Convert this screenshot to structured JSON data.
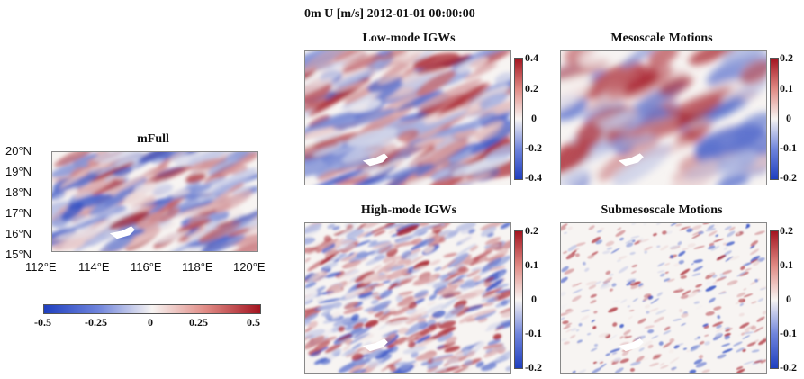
{
  "figure": {
    "suptitle": "0m U [m/s] 2012-01-01 00:00:00"
  },
  "chart_data": [
    {
      "type": "heatmap",
      "title": "mFull",
      "variable": "U [m/s]",
      "x_ticks": [
        "112°E",
        "114°E",
        "116°E",
        "118°E",
        "120°E"
      ],
      "y_ticks": [
        "20°N",
        "19°N",
        "18°N",
        "17°N",
        "16°N",
        "15°N"
      ],
      "xlim": [
        112,
        120
      ],
      "ylim": [
        15,
        20
      ],
      "colorbar": {
        "orientation": "horizontal",
        "range": [
          -0.5,
          0.5
        ],
        "ticks": [
          "-0.5",
          "-0.25",
          "0",
          "0.25",
          "0.5"
        ]
      },
      "colormap": {
        "negative": "#1f3fbf",
        "zero": "#f7f4f2",
        "positive": "#a31420"
      }
    },
    {
      "type": "heatmap",
      "title": "Low-mode IGWs",
      "variable": "U [m/s]",
      "colorbar": {
        "orientation": "vertical",
        "range": [
          -0.4,
          0.4
        ],
        "ticks": [
          "0.4",
          "0.2",
          "0",
          "-0.2",
          "-0.4"
        ]
      }
    },
    {
      "type": "heatmap",
      "title": "Mesoscale Motions",
      "variable": "U [m/s]",
      "colorbar": {
        "orientation": "vertical",
        "range": [
          -0.2,
          0.2
        ],
        "ticks": [
          "0.2",
          "0.1",
          "0",
          "-0.1",
          "-0.2"
        ]
      }
    },
    {
      "type": "heatmap",
      "title": "High-mode IGWs",
      "variable": "U [m/s]",
      "colorbar": {
        "orientation": "vertical",
        "range": [
          -0.2,
          0.2
        ],
        "ticks": [
          "0.2",
          "0.1",
          "0",
          "-0.1",
          "-0.2"
        ]
      }
    },
    {
      "type": "heatmap",
      "title": "Submesoscale Motions",
      "variable": "U [m/s]",
      "colorbar": {
        "orientation": "vertical",
        "range": [
          -0.2,
          0.2
        ],
        "ticks": [
          "0.2",
          "0.1",
          "0",
          "-0.1",
          "-0.2"
        ]
      }
    }
  ]
}
